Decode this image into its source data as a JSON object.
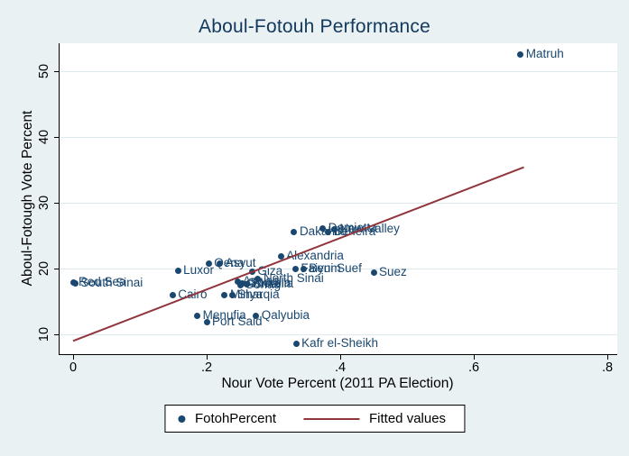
{
  "colors": {
    "figure_background": "#e9f1f3",
    "plot_background": "#ffffff",
    "marker": "#1a476f",
    "marker_label": "#1a476f",
    "fit_line": "#90353b",
    "title": "#13385e",
    "gridline": "#dde9ec",
    "axis": "#000000"
  },
  "chart_data": {
    "type": "scatter",
    "title": "Aboul-Fotouh Performance",
    "xlabel": "Nour Vote Percent (2011 PA Election)",
    "ylabel": "Aboul-Fotough Vote Percent",
    "xlim": [
      -0.02,
      0.815
    ],
    "ylim": [
      6.5,
      53.8
    ],
    "grid": "horizontal-only",
    "x_ticks": [
      {
        "v": 0.0,
        "label": "0"
      },
      {
        "v": 0.2,
        "label": ".2"
      },
      {
        "v": 0.4,
        "label": ".4"
      },
      {
        "v": 0.6,
        "label": ".6"
      },
      {
        "v": 0.8,
        "label": ".8"
      }
    ],
    "y_ticks": [
      {
        "v": 10,
        "label": "10"
      },
      {
        "v": 20,
        "label": "20"
      },
      {
        "v": 30,
        "label": "30"
      },
      {
        "v": 40,
        "label": "40"
      },
      {
        "v": 50,
        "label": "50"
      }
    ],
    "series": [
      {
        "name": "FotohPercent",
        "type": "scatter",
        "marker_color": "#1a476f",
        "points": [
          {
            "label": "Matruh",
            "x": 0.67,
            "y": 52.6
          },
          {
            "label": "Damietta",
            "x": 0.374,
            "y": 26.1
          },
          {
            "label": "New Valley",
            "x": 0.391,
            "y": 25.9
          },
          {
            "label": "Beheira",
            "x": 0.382,
            "y": 25.5
          },
          {
            "label": "Dakahlia",
            "x": 0.331,
            "y": 25.6
          },
          {
            "label": "Alexandria",
            "x": 0.311,
            "y": 21.8
          },
          {
            "label": "Qena",
            "x": 0.203,
            "y": 20.8
          },
          {
            "label": "Asyut",
            "x": 0.22,
            "y": 20.7
          },
          {
            "label": "Luxor",
            "x": 0.157,
            "y": 19.7
          },
          {
            "label": "Giza",
            "x": 0.268,
            "y": 19.5
          },
          {
            "label": "Faiyum",
            "x": 0.333,
            "y": 20.0
          },
          {
            "label": "Beni Suef",
            "x": 0.345,
            "y": 20.0
          },
          {
            "label": "Suez",
            "x": 0.45,
            "y": 19.4
          },
          {
            "label": "North Sinai",
            "x": 0.277,
            "y": 18.4
          },
          {
            "label": "Red Sea",
            "x": 0.0,
            "y": 17.9
          },
          {
            "label": "South Sinai",
            "x": 0.003,
            "y": 17.8
          },
          {
            "label": "Aswan",
            "x": 0.246,
            "y": 18.0
          },
          {
            "label": "Gharbia",
            "x": 0.253,
            "y": 17.8
          },
          {
            "label": "Ismailia",
            "x": 0.26,
            "y": 17.6
          },
          {
            "label": "Sohag",
            "x": 0.25,
            "y": 17.4
          },
          {
            "label": "Cairo",
            "x": 0.149,
            "y": 16.0
          },
          {
            "label": "Minya",
            "x": 0.227,
            "y": 16.0
          },
          {
            "label": "Sharqia",
            "x": 0.238,
            "y": 16.0
          },
          {
            "label": "Menufia",
            "x": 0.186,
            "y": 12.8
          },
          {
            "label": "Qalyubia",
            "x": 0.274,
            "y": 12.8
          },
          {
            "label": "Port Said",
            "x": 0.2,
            "y": 11.9
          },
          {
            "label": "Kafr el-Sheikh",
            "x": 0.334,
            "y": 8.5
          }
        ]
      },
      {
        "name": "Fitted values",
        "type": "line",
        "color": "#90353b",
        "from": {
          "x": 0.0,
          "y": 9.0
        },
        "to": {
          "x": 0.675,
          "y": 35.4
        }
      }
    ],
    "legend_position": "bottom-center"
  },
  "legend": {
    "items": [
      {
        "label": "FotohPercent",
        "swatch": "marker"
      },
      {
        "label": "Fitted values",
        "swatch": "line"
      }
    ]
  }
}
